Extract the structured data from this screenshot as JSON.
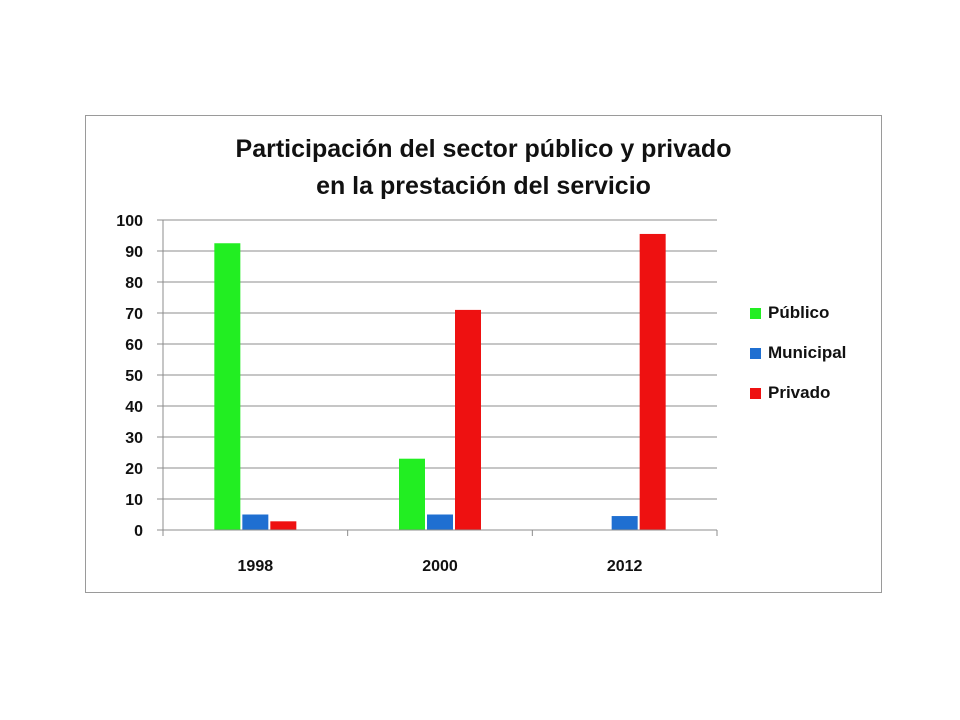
{
  "chart_data": {
    "type": "bar",
    "title": [
      "Participación del sector público y privado",
      "en la prestación del servicio"
    ],
    "categories": [
      "1998",
      "2000",
      "2012"
    ],
    "series": [
      {
        "name": "Público",
        "values": [
          92.5,
          23,
          0
        ],
        "color": "#22ee22"
      },
      {
        "name": "Municipal",
        "values": [
          5,
          5,
          4.5
        ],
        "color": "#1f6fd1"
      },
      {
        "name": "Privado",
        "values": [
          2.8,
          71,
          95.5
        ],
        "color": "#ee1111"
      }
    ],
    "ylim": [
      0,
      100
    ],
    "yticks": [
      "0",
      "10",
      "20",
      "30",
      "40",
      "50",
      "60",
      "70",
      "80",
      "90",
      "100"
    ],
    "xlabel": "",
    "ylabel": "",
    "grid": true,
    "legend_position": "right"
  }
}
